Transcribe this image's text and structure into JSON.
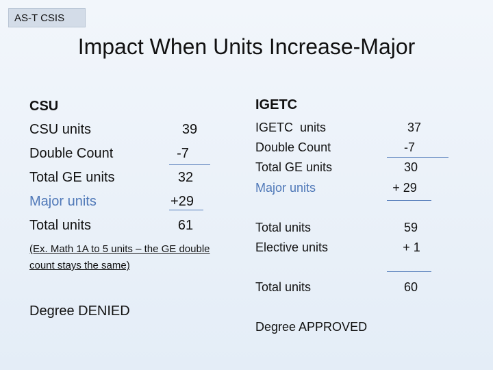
{
  "header": {
    "tag": "AS-T CSIS",
    "title": "Impact When Units Increase-Major"
  },
  "csu": {
    "heading": "CSU",
    "rows": [
      [
        "CSU units",
        "39"
      ],
      [
        "Double Count",
        "-7"
      ],
      [
        "Total GE units",
        "32"
      ],
      [
        "Major units",
        "+29"
      ],
      [
        "Total units",
        "61"
      ]
    ],
    "note_lines": [
      "(Ex. Math 1A to 5 units – the GE double",
      "count stays the same)"
    ],
    "result": "Degree DENIED"
  },
  "igetc": {
    "heading": "IGETC",
    "rows": [
      [
        "IGETC  units",
        "37"
      ],
      [
        "Double Count",
        "-7"
      ],
      [
        "Total GE units",
        "30"
      ],
      [
        "Major units",
        "+ 29"
      ],
      [
        "Total units",
        "59"
      ],
      [
        "Elective units",
        "+ 1"
      ],
      [
        "Total units",
        "60"
      ]
    ],
    "result": "Degree APPROVED"
  }
}
